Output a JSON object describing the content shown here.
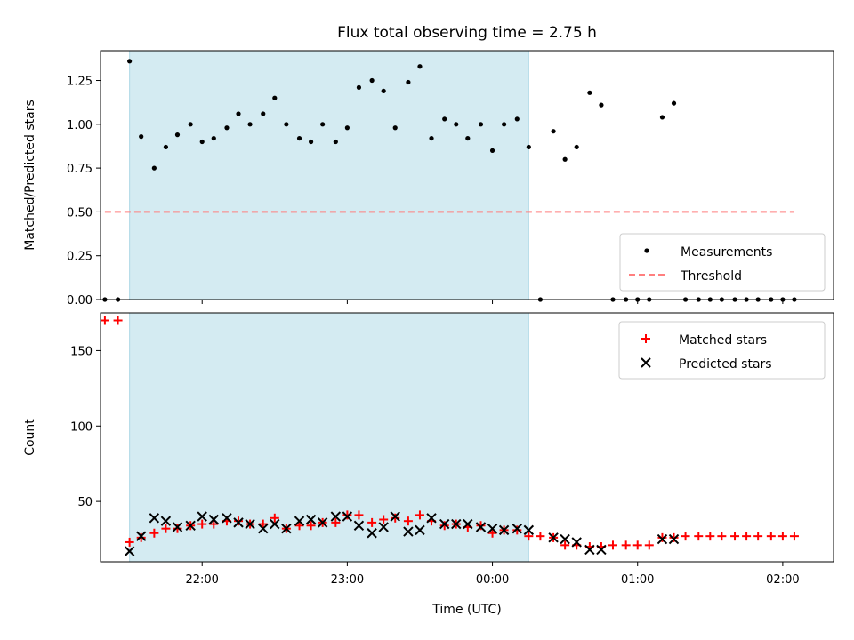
{
  "chart_data": {
    "type": "scatter",
    "title": "Flux total observing time = 2.75 h",
    "xlabel": "Time (UTC)",
    "x_unit": "hours UTC since 00:00 (negative = previous day)",
    "xlim": [
      -2.7,
      2.35
    ],
    "xticks": [
      {
        "value": -2,
        "label": "22:00"
      },
      {
        "value": -1,
        "label": "23:00"
      },
      {
        "value": 0,
        "label": "00:00"
      },
      {
        "value": 1,
        "label": "01:00"
      },
      {
        "value": 2,
        "label": "02:00"
      }
    ],
    "shaded_interval": {
      "start": -2.5,
      "end": 0.25,
      "color": "#add8e6"
    },
    "colors": {
      "measurements": "#000000",
      "threshold": "#ff7f7f",
      "matched": "#ff0000",
      "predicted": "#000000"
    },
    "panels": [
      {
        "ylabel": "Matched/Predicted stars",
        "ylim": [
          0,
          1.42
        ],
        "yticks": [
          "0.00",
          "0.25",
          "0.50",
          "0.75",
          "1.00",
          "1.25"
        ],
        "legend_position": "lower-right",
        "legend": [
          "Measurements",
          "Threshold"
        ],
        "threshold": {
          "name": "Threshold",
          "value": 0.5,
          "x_range": [
            -2.67,
            2.08
          ]
        },
        "series": [
          {
            "name": "Measurements",
            "marker": "dot",
            "points": [
              [
                -2.67,
                0
              ],
              [
                -2.58,
                0
              ],
              [
                -2.5,
                1.36
              ],
              [
                -2.42,
                0.93
              ],
              [
                -2.33,
                0.75
              ],
              [
                -2.25,
                0.87
              ],
              [
                -2.17,
                0.94
              ],
              [
                -2.08,
                1.0
              ],
              [
                -2.0,
                0.9
              ],
              [
                -1.92,
                0.92
              ],
              [
                -1.83,
                0.98
              ],
              [
                -1.75,
                1.06
              ],
              [
                -1.67,
                1.0
              ],
              [
                -1.58,
                1.06
              ],
              [
                -1.5,
                1.15
              ],
              [
                -1.42,
                1.0
              ],
              [
                -1.33,
                0.92
              ],
              [
                -1.25,
                0.9
              ],
              [
                -1.17,
                1.0
              ],
              [
                -1.08,
                0.9
              ],
              [
                -1.0,
                0.98
              ],
              [
                -0.92,
                1.21
              ],
              [
                -0.83,
                1.25
              ],
              [
                -0.75,
                1.19
              ],
              [
                -0.67,
                0.98
              ],
              [
                -0.58,
                1.24
              ],
              [
                -0.5,
                1.33
              ],
              [
                -0.42,
                0.92
              ],
              [
                -0.33,
                1.03
              ],
              [
                -0.25,
                1.0
              ],
              [
                -0.17,
                0.92
              ],
              [
                -0.08,
                1.0
              ],
              [
                0.0,
                0.85
              ],
              [
                0.08,
                1.0
              ],
              [
                0.17,
                1.03
              ],
              [
                0.25,
                0.87
              ],
              [
                0.33,
                0
              ],
              [
                0.42,
                0.96
              ],
              [
                0.5,
                0.8
              ],
              [
                0.58,
                0.87
              ],
              [
                0.67,
                1.18
              ],
              [
                0.75,
                1.11
              ],
              [
                0.83,
                0
              ],
              [
                0.92,
                0
              ],
              [
                1.0,
                0
              ],
              [
                1.08,
                0
              ],
              [
                1.17,
                1.04
              ],
              [
                1.25,
                1.12
              ],
              [
                1.33,
                0
              ],
              [
                1.42,
                0
              ],
              [
                1.5,
                0
              ],
              [
                1.58,
                0
              ],
              [
                1.67,
                0
              ],
              [
                1.75,
                0
              ],
              [
                1.83,
                0
              ],
              [
                1.92,
                0
              ],
              [
                2.0,
                0
              ],
              [
                2.08,
                0
              ]
            ]
          }
        ]
      },
      {
        "ylabel": "Count",
        "ylim": [
          10,
          175
        ],
        "yticks": [
          "50",
          "100",
          "150"
        ],
        "legend_position": "upper-right",
        "legend": [
          "Matched stars",
          "Predicted stars"
        ],
        "series": [
          {
            "name": "Matched stars",
            "marker": "plus",
            "points": [
              [
                -2.67,
                170
              ],
              [
                -2.58,
                170
              ],
              [
                -2.5,
                23
              ],
              [
                -2.42,
                26
              ],
              [
                -2.33,
                29
              ],
              [
                -2.25,
                32
              ],
              [
                -2.17,
                32
              ],
              [
                -2.08,
                34
              ],
              [
                -2.0,
                35
              ],
              [
                -1.92,
                35
              ],
              [
                -1.83,
                37
              ],
              [
                -1.75,
                37
              ],
              [
                -1.67,
                35
              ],
              [
                -1.58,
                35
              ],
              [
                -1.5,
                39
              ],
              [
                -1.42,
                32
              ],
              [
                -1.33,
                34
              ],
              [
                -1.25,
                34
              ],
              [
                -1.17,
                36
              ],
              [
                -1.08,
                36
              ],
              [
                -1.0,
                41
              ],
              [
                -0.92,
                41
              ],
              [
                -0.83,
                36
              ],
              [
                -0.75,
                38
              ],
              [
                -0.67,
                39
              ],
              [
                -0.58,
                37
              ],
              [
                -0.5,
                41
              ],
              [
                -0.42,
                37
              ],
              [
                -0.33,
                34
              ],
              [
                -0.25,
                35
              ],
              [
                -0.17,
                33
              ],
              [
                -0.08,
                34
              ],
              [
                0.0,
                29
              ],
              [
                0.08,
                31
              ],
              [
                0.17,
                31
              ],
              [
                0.25,
                27
              ],
              [
                0.33,
                27
              ],
              [
                0.42,
                26
              ],
              [
                0.5,
                21
              ],
              [
                0.58,
                21
              ],
              [
                0.67,
                20
              ],
              [
                0.75,
                20
              ],
              [
                0.83,
                21
              ],
              [
                0.92,
                21
              ],
              [
                1.0,
                21
              ],
              [
                1.08,
                21
              ],
              [
                1.17,
                26
              ],
              [
                1.25,
                26
              ],
              [
                1.33,
                27
              ],
              [
                1.42,
                27
              ],
              [
                1.5,
                27
              ],
              [
                1.58,
                27
              ],
              [
                1.67,
                27
              ],
              [
                1.75,
                27
              ],
              [
                1.83,
                27
              ],
              [
                1.92,
                27
              ],
              [
                2.0,
                27
              ],
              [
                2.08,
                27
              ]
            ]
          },
          {
            "name": "Predicted stars",
            "marker": "x",
            "points": [
              [
                -2.5,
                17
              ],
              [
                -2.42,
                27
              ],
              [
                -2.33,
                39
              ],
              [
                -2.25,
                37
              ],
              [
                -2.17,
                33
              ],
              [
                -2.08,
                34
              ],
              [
                -2.0,
                40
              ],
              [
                -1.92,
                38
              ],
              [
                -1.83,
                39
              ],
              [
                -1.75,
                36
              ],
              [
                -1.67,
                35
              ],
              [
                -1.58,
                32
              ],
              [
                -1.5,
                35
              ],
              [
                -1.42,
                32
              ],
              [
                -1.33,
                37
              ],
              [
                -1.25,
                38
              ],
              [
                -1.17,
                36
              ],
              [
                -1.08,
                40
              ],
              [
                -1.0,
                40
              ],
              [
                -0.92,
                34
              ],
              [
                -0.83,
                29
              ],
              [
                -0.75,
                33
              ],
              [
                -0.67,
                40
              ],
              [
                -0.58,
                30
              ],
              [
                -0.5,
                31
              ],
              [
                -0.42,
                39
              ],
              [
                -0.33,
                35
              ],
              [
                -0.25,
                35
              ],
              [
                -0.17,
                35
              ],
              [
                -0.08,
                33
              ],
              [
                0.0,
                32
              ],
              [
                0.08,
                31
              ],
              [
                0.17,
                32
              ],
              [
                0.25,
                31
              ],
              [
                0.42,
                26
              ],
              [
                0.5,
                25
              ],
              [
                0.58,
                23
              ],
              [
                0.67,
                18
              ],
              [
                0.75,
                18
              ],
              [
                1.17,
                25
              ],
              [
                1.25,
                25
              ]
            ]
          }
        ]
      }
    ]
  }
}
